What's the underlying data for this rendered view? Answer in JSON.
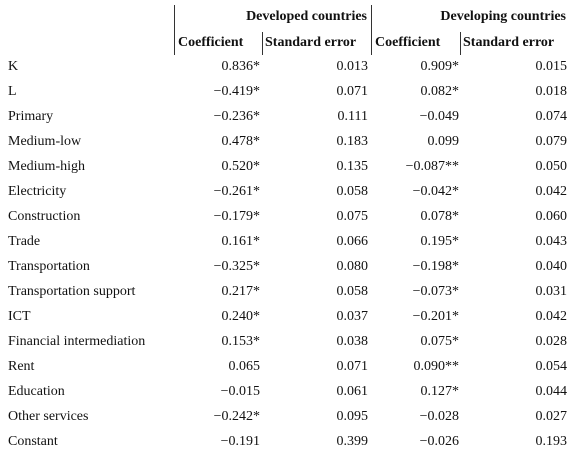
{
  "header": {
    "groups": [
      "Developed countries",
      "Developing countries"
    ],
    "columns": [
      "Coefficient",
      "Standard error",
      "Coefficient",
      "Standard error"
    ]
  },
  "table": {
    "rows": [
      [
        "K",
        "0.836*",
        "0.013",
        "0.909*",
        "0.015"
      ],
      [
        "L",
        "−0.419*",
        "0.071",
        "0.082*",
        "0.018"
      ],
      [
        "Primary",
        "−0.236*",
        "0.111",
        "−0.049",
        "0.074"
      ],
      [
        "Medium-low",
        "0.478*",
        "0.183",
        "0.099",
        "0.079"
      ],
      [
        "Medium-high",
        "0.520*",
        "0.135",
        "−0.087**",
        "0.050"
      ],
      [
        "Electricity",
        "−0.261*",
        "0.058",
        "−0.042*",
        "0.042"
      ],
      [
        "Construction",
        "−0.179*",
        "0.075",
        "0.078*",
        "0.060"
      ],
      [
        "Trade",
        "0.161*",
        "0.066",
        "0.195*",
        "0.043"
      ],
      [
        "Transportation",
        "−0.325*",
        "0.080",
        "−0.198*",
        "0.040"
      ],
      [
        "Transportation support",
        "0.217*",
        "0.058",
        "−0.073*",
        "0.031"
      ],
      [
        "ICT",
        "0.240*",
        "0.037",
        "−0.201*",
        "0.042"
      ],
      [
        "Financial intermediation",
        "0.153*",
        "0.038",
        "0.075*",
        "0.028"
      ],
      [
        "Rent",
        "0.065",
        "0.071",
        "0.090**",
        "0.054"
      ],
      [
        "Education",
        "−0.015",
        "0.061",
        "0.127*",
        "0.044"
      ],
      [
        "Other services",
        "−0.242*",
        "0.095",
        "−0.028",
        "0.027"
      ],
      [
        "Constant",
        "−0.191",
        "0.399",
        "−0.026",
        "0.193"
      ]
    ]
  }
}
